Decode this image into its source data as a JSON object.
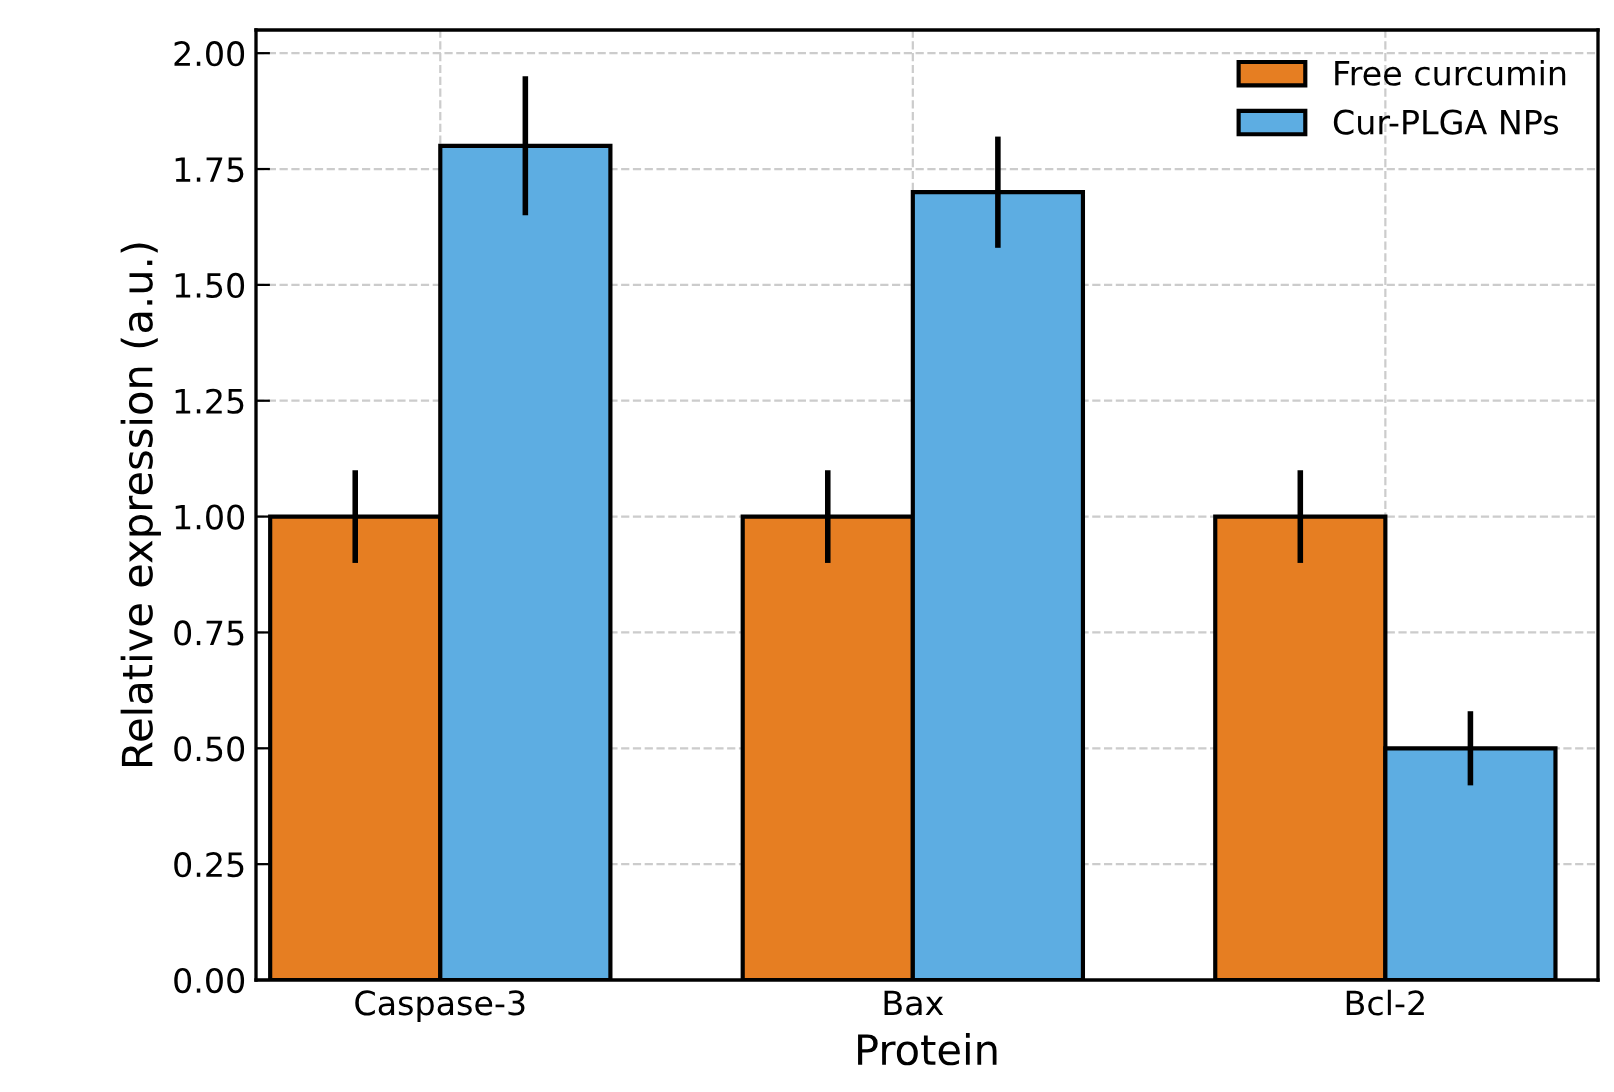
{
  "chart_data": {
    "type": "bar",
    "xlabel": "Protein",
    "ylabel": "Relative expression (a.u.)",
    "categories": [
      "Caspase-3",
      "Bax",
      "Bcl-2"
    ],
    "series": [
      {
        "name": "Free curcumin",
        "color": "#e67e22",
        "values": [
          1.0,
          1.0,
          1.0
        ],
        "errors": [
          0.1,
          0.1,
          0.1
        ]
      },
      {
        "name": "Cur-PLGA NPs",
        "color": "#5dade2",
        "values": [
          1.8,
          1.7,
          0.5
        ],
        "errors": [
          0.15,
          0.12,
          0.08
        ]
      }
    ],
    "ylim": [
      0,
      2.05
    ],
    "yticks": [
      {
        "value": 0,
        "label": "0.00"
      },
      {
        "value": 0.25,
        "label": "0.25"
      },
      {
        "value": 0.5,
        "label": "0.50"
      },
      {
        "value": 0.75,
        "label": "0.75"
      },
      {
        "value": 1.0,
        "label": "1.00"
      },
      {
        "value": 1.25,
        "label": "1.25"
      },
      {
        "value": 1.5,
        "label": "1.50"
      },
      {
        "value": 1.75,
        "label": "1.75"
      },
      {
        "value": 2.0,
        "label": "2.00"
      }
    ],
    "grid": true,
    "legend": "top right"
  }
}
